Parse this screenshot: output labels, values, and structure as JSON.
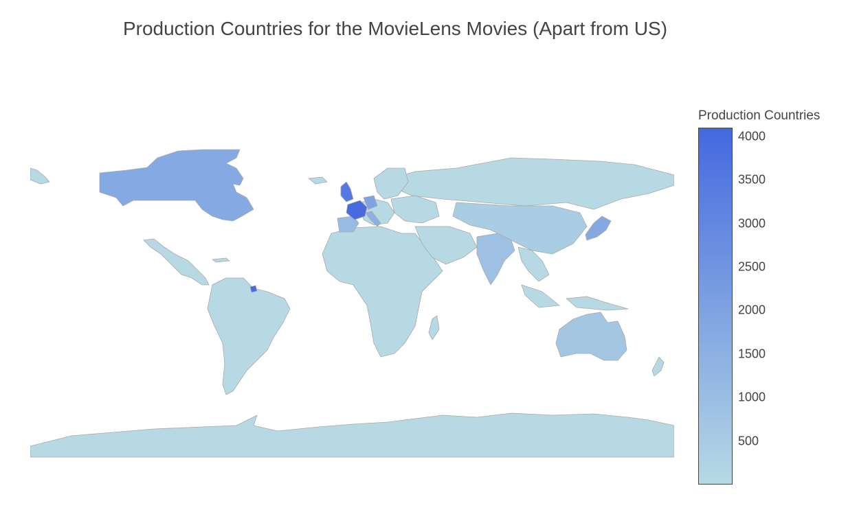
{
  "title": "Production Countries for the MovieLens Movies (Apart from US)",
  "colorbar": {
    "title": "Production Countries",
    "min": 0,
    "max": 4100,
    "ticks": [
      "4000",
      "3500",
      "3000",
      "2500",
      "2000",
      "1500",
      "1000",
      "500"
    ],
    "tick_values": [
      4000,
      3500,
      3000,
      2500,
      2000,
      1500,
      1000,
      500
    ],
    "color_low": "#b6d9e4",
    "color_high": "#4469df"
  },
  "colors": {
    "land_default": "#b6d9e4",
    "border": "#a9a9a9",
    "background": "#ffffff"
  },
  "countries": [
    {
      "name": "Canada",
      "value": 1750
    },
    {
      "name": "France",
      "value": 4010
    },
    {
      "name": "United Kingdom",
      "value": 3500
    },
    {
      "name": "Germany",
      "value": 2000
    },
    {
      "name": "Italy",
      "value": 1500
    },
    {
      "name": "Spain",
      "value": 1100
    },
    {
      "name": "Japan",
      "value": 1800
    },
    {
      "name": "India",
      "value": 900
    },
    {
      "name": "Australia",
      "value": 700
    },
    {
      "name": "China",
      "value": 450
    },
    {
      "name": "Brazil",
      "value": 250
    },
    {
      "name": "French Guiana",
      "value": 4010
    }
  ]
}
